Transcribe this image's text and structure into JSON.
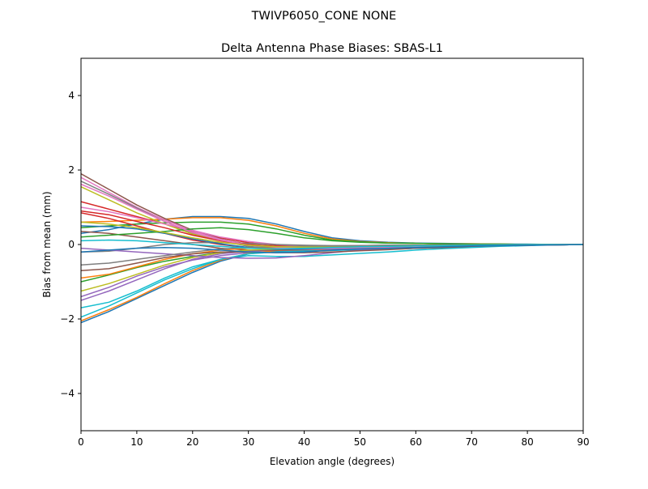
{
  "chart_data": {
    "type": "line",
    "suptitle": "TWIVP6050_CONE  NONE",
    "title": "Delta Antenna Phase Biases: SBAS-L1",
    "xlabel": "Elevation angle (degrees)",
    "ylabel": "Bias from mean (mm)",
    "xlim": [
      0,
      90
    ],
    "ylim": [
      -5,
      5
    ],
    "xticks": [
      0,
      10,
      20,
      30,
      40,
      50,
      60,
      70,
      80,
      90
    ],
    "yticks": [
      -4,
      -2,
      0,
      2,
      4
    ],
    "ytick_labels": [
      "−4",
      "−2",
      "0",
      "2",
      "4"
    ],
    "grid": false,
    "legend": "none",
    "colors": [
      "#1f77b4",
      "#ff7f0e",
      "#2ca02c",
      "#d62728",
      "#9467bd",
      "#8c564b",
      "#e377c2",
      "#7f7f7f",
      "#bcbd22",
      "#17becf"
    ],
    "x": [
      0,
      5,
      10,
      15,
      20,
      25,
      30,
      35,
      40,
      45,
      50,
      55,
      60,
      65,
      70,
      75,
      80,
      85,
      90
    ],
    "series": [
      {
        "values": [
          0.3,
          0.4,
          0.55,
          0.68,
          0.75,
          0.75,
          0.7,
          0.55,
          0.35,
          0.18,
          0.1,
          0.06,
          0.04,
          0.03,
          0.02,
          0.01,
          0.01,
          0,
          0
        ]
      },
      {
        "values": [
          0.6,
          0.62,
          0.65,
          0.68,
          0.72,
          0.72,
          0.65,
          0.5,
          0.3,
          0.15,
          0.08,
          0.05,
          0.03,
          0.02,
          0.02,
          0.01,
          0,
          0,
          0
        ]
      },
      {
        "values": [
          0.45,
          0.5,
          0.55,
          0.58,
          0.6,
          0.6,
          0.55,
          0.42,
          0.25,
          0.12,
          0.07,
          0.04,
          0.03,
          0.02,
          0.01,
          0.01,
          0,
          0,
          0
        ]
      },
      {
        "values": [
          1.15,
          0.95,
          0.75,
          0.55,
          0.35,
          0.18,
          0.05,
          -0.02,
          -0.05,
          -0.06,
          -0.05,
          -0.04,
          -0.03,
          -0.02,
          -0.02,
          -0.01,
          0,
          0,
          0
        ]
      },
      {
        "values": [
          -1.4,
          -1.15,
          -0.85,
          -0.6,
          -0.42,
          -0.3,
          -0.22,
          -0.18,
          -0.15,
          -0.13,
          -0.11,
          -0.09,
          -0.07,
          -0.05,
          -0.04,
          -0.03,
          -0.02,
          -0.01,
          0
        ]
      },
      {
        "values": [
          1.9,
          1.48,
          1.06,
          0.7,
          0.38,
          0.15,
          0,
          -0.08,
          -0.11,
          -0.11,
          -0.1,
          -0.08,
          -0.06,
          -0.04,
          -0.03,
          -0.02,
          -0.01,
          0,
          0
        ]
      },
      {
        "values": [
          1.8,
          1.4,
          1.0,
          0.66,
          0.36,
          0.14,
          0,
          -0.07,
          -0.1,
          -0.1,
          -0.09,
          -0.07,
          -0.05,
          -0.04,
          -0.03,
          -0.02,
          -0.01,
          0,
          0
        ]
      },
      {
        "values": [
          1.7,
          1.35,
          0.98,
          0.62,
          0.3,
          0.1,
          -0.05,
          -0.12,
          -0.15,
          -0.14,
          -0.12,
          -0.1,
          -0.07,
          -0.05,
          -0.03,
          -0.02,
          -0.01,
          0,
          0
        ]
      },
      {
        "values": [
          1.55,
          1.2,
          0.85,
          0.55,
          0.28,
          0.1,
          0,
          -0.05,
          -0.08,
          -0.08,
          -0.07,
          -0.06,
          -0.05,
          -0.03,
          -0.02,
          -0.01,
          -0.01,
          0,
          0
        ]
      },
      {
        "values": [
          -1.7,
          -1.55,
          -1.25,
          -0.9,
          -0.6,
          -0.4,
          -0.3,
          -0.32,
          -0.32,
          -0.28,
          -0.24,
          -0.2,
          -0.15,
          -0.11,
          -0.08,
          -0.05,
          -0.03,
          -0.01,
          0
        ]
      },
      {
        "values": [
          -2.1,
          -1.8,
          -1.45,
          -1.1,
          -0.75,
          -0.45,
          -0.25,
          -0.18,
          -0.15,
          -0.15,
          -0.14,
          -0.12,
          -0.1,
          -0.08,
          -0.06,
          -0.04,
          -0.02,
          -0.01,
          0
        ]
      },
      {
        "values": [
          -2.05,
          -1.75,
          -1.42,
          -1.05,
          -0.7,
          -0.42,
          -0.24,
          -0.16,
          -0.14,
          -0.13,
          -0.12,
          -0.1,
          -0.08,
          -0.06,
          -0.05,
          -0.03,
          -0.02,
          -0.01,
          0
        ]
      },
      {
        "values": [
          -1.0,
          -0.82,
          -0.62,
          -0.45,
          -0.32,
          -0.22,
          -0.16,
          -0.13,
          -0.11,
          -0.1,
          -0.08,
          -0.07,
          -0.05,
          -0.04,
          -0.03,
          -0.02,
          -0.01,
          0,
          0
        ]
      },
      {
        "values": [
          0.85,
          0.7,
          0.5,
          0.3,
          0.12,
          0,
          -0.08,
          -0.1,
          -0.1,
          -0.09,
          -0.08,
          -0.06,
          -0.05,
          -0.03,
          -0.02,
          -0.01,
          0,
          0,
          0
        ]
      },
      {
        "values": [
          -1.5,
          -1.25,
          -0.95,
          -0.65,
          -0.4,
          -0.25,
          -0.18,
          -0.15,
          -0.13,
          -0.12,
          -0.1,
          -0.08,
          -0.07,
          -0.05,
          -0.04,
          -0.03,
          -0.02,
          -0.01,
          0
        ]
      },
      {
        "values": [
          0.35,
          0.3,
          0.2,
          0.1,
          0,
          -0.1,
          -0.15,
          -0.15,
          -0.12,
          -0.1,
          -0.08,
          -0.06,
          -0.04,
          -0.03,
          -0.02,
          -0.01,
          0,
          0,
          0
        ]
      },
      {
        "values": [
          1.0,
          0.88,
          0.72,
          0.55,
          0.38,
          0.2,
          0.08,
          0,
          -0.04,
          -0.05,
          -0.05,
          -0.04,
          -0.03,
          -0.02,
          -0.01,
          -0.01,
          0,
          0,
          0
        ]
      },
      {
        "values": [
          -0.2,
          -0.18,
          -0.1,
          0,
          0.05,
          0.05,
          0.03,
          0,
          -0.02,
          -0.03,
          -0.03,
          -0.02,
          -0.02,
          -0.01,
          -0.01,
          0,
          0,
          0,
          0
        ]
      },
      {
        "values": [
          -1.25,
          -1.05,
          -0.8,
          -0.55,
          -0.35,
          -0.22,
          -0.15,
          -0.12,
          -0.1,
          -0.09,
          -0.08,
          -0.06,
          -0.05,
          -0.04,
          -0.03,
          -0.02,
          -0.01,
          0,
          0
        ]
      },
      {
        "values": [
          -1.95,
          -1.65,
          -1.3,
          -0.95,
          -0.65,
          -0.4,
          -0.25,
          -0.2,
          -0.18,
          -0.16,
          -0.14,
          -0.12,
          -0.1,
          -0.08,
          -0.06,
          -0.04,
          -0.02,
          -0.01,
          0
        ]
      },
      {
        "values": [
          0.5,
          0.48,
          0.42,
          0.3,
          0.15,
          0.02,
          -0.08,
          -0.12,
          -0.12,
          -0.1,
          -0.08,
          -0.06,
          -0.05,
          -0.03,
          -0.02,
          -0.01,
          0,
          0,
          0
        ]
      },
      {
        "values": [
          -0.9,
          -0.8,
          -0.6,
          -0.4,
          -0.25,
          -0.15,
          -0.1,
          -0.08,
          -0.07,
          -0.06,
          -0.05,
          -0.04,
          -0.03,
          -0.02,
          -0.02,
          -0.01,
          0,
          0,
          0
        ]
      },
      {
        "values": [
          0.2,
          0.25,
          0.3,
          0.35,
          0.42,
          0.45,
          0.4,
          0.3,
          0.18,
          0.1,
          0.06,
          0.04,
          0.03,
          0.02,
          0.01,
          0.01,
          0,
          0,
          0
        ]
      },
      {
        "values": [
          0.9,
          0.8,
          0.62,
          0.45,
          0.25,
          0.1,
          0,
          -0.05,
          -0.07,
          -0.07,
          -0.06,
          -0.05,
          -0.04,
          -0.03,
          -0.02,
          -0.01,
          0,
          0,
          0
        ]
      },
      {
        "values": [
          -0.1,
          -0.15,
          -0.2,
          -0.25,
          -0.3,
          -0.35,
          -0.37,
          -0.36,
          -0.3,
          -0.22,
          -0.15,
          -0.1,
          -0.07,
          -0.05,
          -0.03,
          -0.02,
          -0.01,
          0,
          0
        ]
      },
      {
        "values": [
          -0.7,
          -0.65,
          -0.5,
          -0.35,
          -0.25,
          -0.2,
          -0.2,
          -0.22,
          -0.22,
          -0.2,
          -0.17,
          -0.14,
          -0.1,
          -0.08,
          -0.05,
          -0.03,
          -0.02,
          -0.01,
          0
        ]
      },
      {
        "values": [
          1.62,
          1.3,
          0.95,
          0.62,
          0.32,
          0.12,
          -0.02,
          -0.08,
          -0.1,
          -0.1,
          -0.08,
          -0.07,
          -0.05,
          -0.04,
          -0.03,
          -0.02,
          -0.01,
          0,
          0
        ]
      },
      {
        "values": [
          -0.55,
          -0.5,
          -0.4,
          -0.3,
          -0.2,
          -0.12,
          -0.08,
          -0.06,
          -0.05,
          -0.04,
          -0.03,
          -0.02,
          -0.02,
          -0.01,
          -0.01,
          0,
          0,
          0,
          0
        ]
      },
      {
        "values": [
          0.6,
          0.55,
          0.45,
          0.32,
          0.18,
          0.06,
          -0.02,
          -0.06,
          -0.07,
          -0.07,
          -0.06,
          -0.05,
          -0.04,
          -0.03,
          -0.02,
          -0.01,
          0,
          0,
          0
        ]
      },
      {
        "values": [
          0.1,
          0.12,
          0.1,
          0.05,
          0,
          -0.05,
          -0.1,
          -0.12,
          -0.1,
          -0.08,
          -0.06,
          -0.05,
          -0.04,
          -0.03,
          -0.02,
          -0.01,
          0,
          0,
          0
        ]
      },
      {
        "values": [
          -0.2,
          -0.15,
          -0.1,
          -0.08,
          -0.1,
          -0.15,
          -0.2,
          -0.22,
          -0.2,
          -0.15,
          -0.12,
          -0.1,
          -0.08,
          -0.06,
          -0.04,
          -0.03,
          -0.02,
          -0.01,
          0
        ]
      }
    ]
  }
}
